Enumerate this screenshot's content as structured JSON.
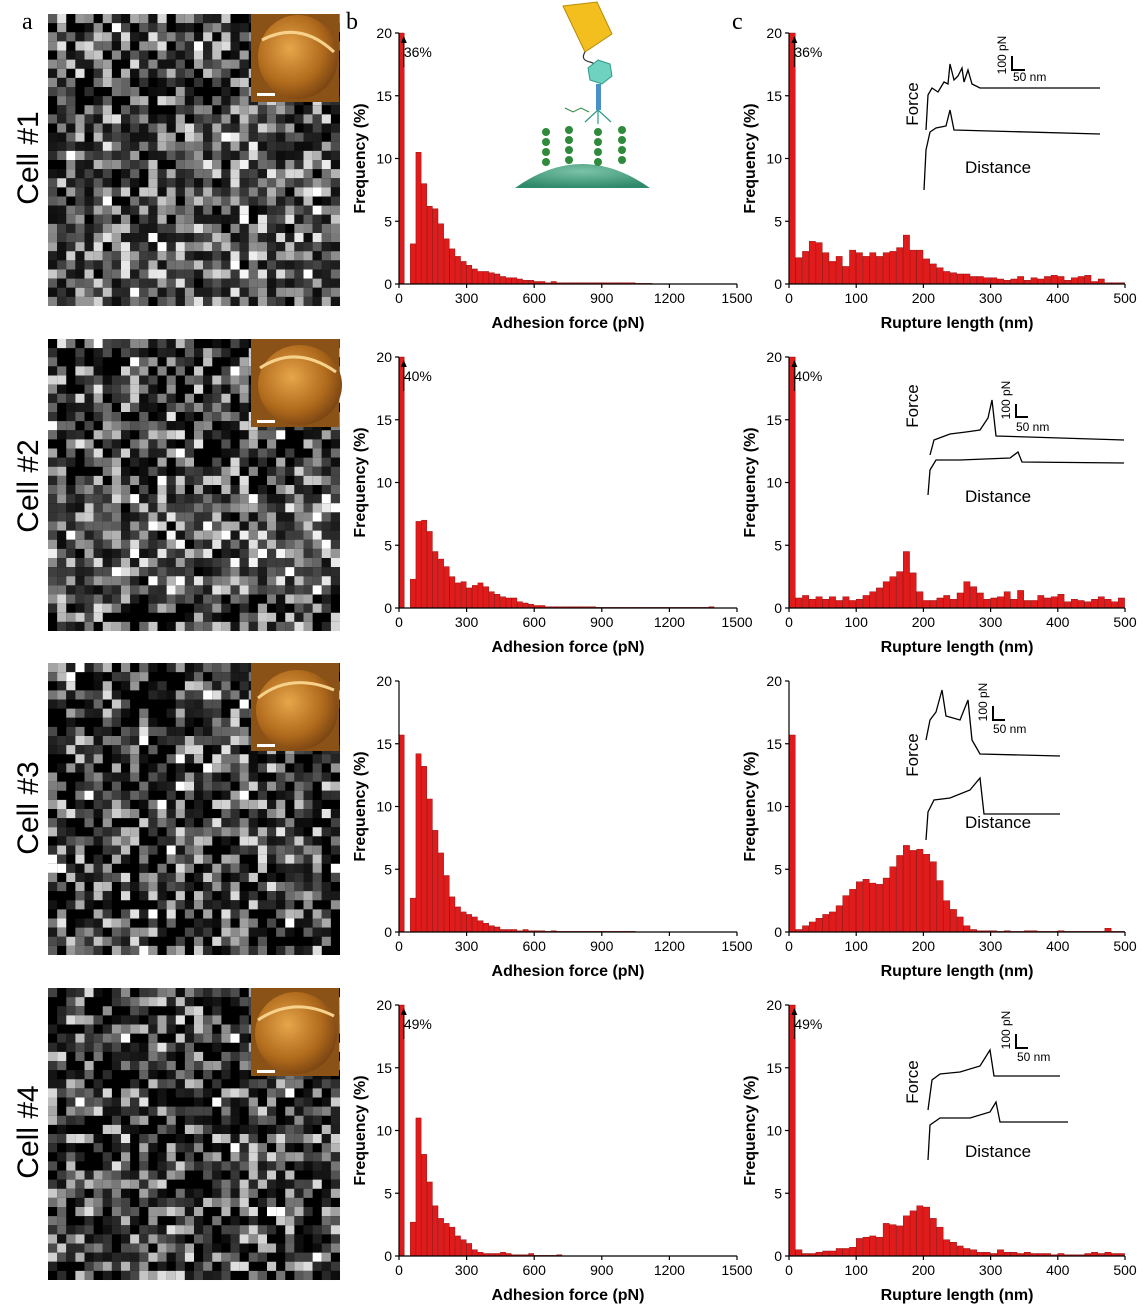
{
  "panel_letters": [
    "a",
    "b",
    "c"
  ],
  "cell_labels": [
    "Cell #1",
    "Cell #2",
    "Cell #3",
    "Cell #4"
  ],
  "inset_labels": {
    "force": "Force",
    "distance": "Distance",
    "force_scale": "100 pN",
    "distance_scale": "50 nm"
  },
  "colors": {
    "bar": "#e01b1b",
    "bar_stroke": "#8b0000",
    "axis": "#000000"
  },
  "chart_data": [
    {
      "type": "bar",
      "cell": "Cell #1",
      "panel": "b",
      "xlabel": "Adhesion force (pN)",
      "ylabel": "Frequency (%)",
      "xlim": [
        0,
        1500
      ],
      "ylim": [
        0,
        20
      ],
      "xticks": [
        "0",
        "300",
        "600",
        "900",
        "1200",
        "1500"
      ],
      "yticks": [
        "0",
        "5",
        "10",
        "15",
        "20"
      ],
      "bin_width": 25,
      "first_bin_label": "36%",
      "values": [
        36,
        0,
        3.2,
        10.5,
        8.0,
        6.2,
        6.0,
        4.8,
        3.6,
        2.8,
        2.2,
        1.8,
        1.5,
        1.2,
        1.0,
        1.0,
        0.9,
        0.8,
        0.6,
        0.5,
        0.5,
        0.4,
        0.3,
        0.3,
        0.2,
        0.2,
        0.1,
        0.2,
        0.1,
        0.1,
        0.1,
        0.1,
        0.1,
        0.1,
        0.1,
        0.1,
        0.1,
        0.1,
        0.1,
        0.1,
        0.1,
        0.1,
        0.05,
        0.05,
        0.05
      ]
    },
    {
      "type": "bar",
      "cell": "Cell #1",
      "panel": "c",
      "xlabel": "Rupture length (nm)",
      "ylabel": "Frequency (%)",
      "xlim": [
        0,
        500
      ],
      "ylim": [
        0,
        20
      ],
      "xticks": [
        "0",
        "100",
        "200",
        "300",
        "400",
        "500"
      ],
      "yticks": [
        "0",
        "5",
        "10",
        "15",
        "20"
      ],
      "bin_width": 10,
      "first_bin_label": "36%",
      "values": [
        36,
        2.1,
        2.6,
        3.4,
        3.3,
        2.5,
        1.8,
        2.2,
        1.4,
        2.7,
        2.5,
        2.2,
        2.5,
        2.2,
        2.5,
        2.6,
        2.9,
        3.9,
        2.7,
        2.7,
        2.0,
        1.6,
        1.3,
        1.0,
        0.9,
        0.8,
        0.8,
        0.6,
        0.6,
        0.5,
        0.5,
        0.4,
        0.3,
        0.4,
        0.6,
        0.3,
        0.5,
        0.4,
        0.6,
        0.7,
        0.6,
        0.3,
        0.5,
        0.6,
        0.7,
        0.2,
        0.4,
        0.1,
        0.1,
        0.1
      ]
    },
    {
      "type": "bar",
      "cell": "Cell #2",
      "panel": "b",
      "xlabel": "Adhesion force (pN)",
      "ylabel": "Frequency (%)",
      "xlim": [
        0,
        1500
      ],
      "ylim": [
        0,
        20
      ],
      "xticks": [
        "0",
        "300",
        "600",
        "900",
        "1200",
        "1500"
      ],
      "yticks": [
        "0",
        "5",
        "10",
        "15",
        "20"
      ],
      "bin_width": 25,
      "first_bin_label": "40%",
      "values": [
        40,
        0,
        2.3,
        6.9,
        7.0,
        6.1,
        4.5,
        3.9,
        3.3,
        2.5,
        2.0,
        2.1,
        1.6,
        1.8,
        2.0,
        1.7,
        1.3,
        1.1,
        0.9,
        0.8,
        0.8,
        0.5,
        0.4,
        0.3,
        0.2,
        0.2,
        0.1,
        0.1,
        0.1,
        0.1,
        0.1,
        0.1,
        0.1,
        0.1,
        0.1,
        0.05,
        0.05,
        0.05,
        0.05,
        0.05,
        0.05,
        0.05,
        0.05,
        0.05,
        0.05,
        0.05,
        0.05,
        0.05,
        0.05,
        0.05,
        0.05,
        0.05,
        0.05,
        0.05,
        0.05,
        0.1
      ]
    },
    {
      "type": "bar",
      "cell": "Cell #2",
      "panel": "c",
      "xlabel": "Rupture length (nm)",
      "ylabel": "Frequency (%)",
      "xlim": [
        0,
        500
      ],
      "ylim": [
        0,
        20
      ],
      "xticks": [
        "0",
        "100",
        "200",
        "300",
        "400",
        "500"
      ],
      "yticks": [
        "0",
        "5",
        "10",
        "15",
        "20"
      ],
      "bin_width": 10,
      "first_bin_label": "40%",
      "values": [
        40,
        0.8,
        1.0,
        0.7,
        0.9,
        0.7,
        0.9,
        0.6,
        0.9,
        0.6,
        0.7,
        1.0,
        1.3,
        1.6,
        2.1,
        2.5,
        2.9,
        4.5,
        2.8,
        1.3,
        0.6,
        0.6,
        0.8,
        1.0,
        0.7,
        1.2,
        2.1,
        1.7,
        1.2,
        0.7,
        0.8,
        0.9,
        1.3,
        0.7,
        1.4,
        0.6,
        0.6,
        1.0,
        0.8,
        0.9,
        1.1,
        0.5,
        0.7,
        0.6,
        0.5,
        0.7,
        0.9,
        0.7,
        0.5,
        0.8
      ]
    },
    {
      "type": "bar",
      "cell": "Cell #3",
      "panel": "b",
      "xlabel": "Adhesion force (pN)",
      "ylabel": "Frequency (%)",
      "xlim": [
        0,
        1500
      ],
      "ylim": [
        0,
        20
      ],
      "xticks": [
        "0",
        "300",
        "600",
        "900",
        "1200",
        "1500"
      ],
      "yticks": [
        "0",
        "5",
        "10",
        "15",
        "20"
      ],
      "bin_width": 25,
      "values": [
        15.7,
        0,
        2.7,
        14.2,
        13.2,
        10.6,
        8.1,
        6.3,
        4.5,
        2.8,
        2.0,
        1.6,
        1.4,
        1.2,
        0.9,
        0.7,
        0.5,
        0.4,
        0.2,
        0.2,
        0.2,
        0.1,
        0.2,
        0.1,
        0.1,
        0.1,
        0.05,
        0.1,
        0.05,
        0.05,
        0.05,
        0.05,
        0.05,
        0.05,
        0.05,
        0.05,
        0.05,
        0.05,
        0.05,
        0.05,
        0.05,
        0.05
      ]
    },
    {
      "type": "bar",
      "cell": "Cell #3",
      "panel": "c",
      "xlabel": "Rupture length (nm)",
      "ylabel": "Frequency (%)",
      "xlim": [
        0,
        500
      ],
      "ylim": [
        0,
        20
      ],
      "xticks": [
        "0",
        "100",
        "200",
        "300",
        "400",
        "500"
      ],
      "yticks": [
        "0",
        "5",
        "10",
        "15",
        "20"
      ],
      "bin_width": 10,
      "values": [
        15.7,
        0.2,
        0.5,
        0.8,
        1.1,
        1.4,
        1.6,
        2.1,
        2.9,
        3.4,
        4.0,
        4.2,
        3.9,
        3.8,
        4.3,
        5.2,
        6.1,
        6.9,
        6.5,
        6.6,
        6.2,
        5.6,
        4.1,
        2.5,
        1.8,
        1.2,
        0.5,
        0.2,
        0.1,
        0.1,
        0.1,
        0.05,
        0.1,
        0.05,
        0.05,
        0.1,
        0.1,
        0.05,
        0.05,
        0.05,
        0.1,
        0.05,
        0.05,
        0.05,
        0.05,
        0.05,
        0.05,
        0.3,
        0.05,
        0.05
      ]
    },
    {
      "type": "bar",
      "cell": "Cell #4",
      "panel": "b",
      "xlabel": "Adhesion force (pN)",
      "ylabel": "Frequency (%)",
      "xlim": [
        0,
        1500
      ],
      "ylim": [
        0,
        20
      ],
      "xticks": [
        "0",
        "300",
        "600",
        "900",
        "1200",
        "1500"
      ],
      "yticks": [
        "0",
        "5",
        "10",
        "15",
        "20"
      ],
      "bin_width": 25,
      "first_bin_label": "49%",
      "values": [
        49,
        0,
        2.7,
        11.0,
        8.1,
        5.9,
        4.0,
        3.0,
        2.6,
        2.3,
        1.6,
        1.3,
        1.0,
        0.5,
        0.3,
        0.2,
        0.2,
        0.2,
        0.3,
        0.2,
        0.1,
        0.1,
        0.1,
        0.2,
        0.05,
        0.05,
        0.05,
        0.05,
        0.1
      ]
    },
    {
      "type": "bar",
      "cell": "Cell #4",
      "panel": "c",
      "xlabel": "Rupture length (nm)",
      "ylabel": "Frequency (%)",
      "xlim": [
        0,
        500
      ],
      "ylim": [
        0,
        20
      ],
      "xticks": [
        "0",
        "100",
        "200",
        "300",
        "400",
        "500"
      ],
      "yticks": [
        "0",
        "5",
        "10",
        "15",
        "20"
      ],
      "bin_width": 10,
      "first_bin_label": "49%",
      "values": [
        49,
        0.5,
        0.2,
        0.2,
        0.3,
        0.4,
        0.4,
        0.6,
        0.6,
        0.7,
        1.4,
        1.5,
        1.6,
        1.5,
        2.6,
        2.5,
        2.4,
        3.2,
        3.6,
        4.0,
        3.9,
        3.0,
        2.3,
        1.3,
        1.1,
        0.8,
        0.6,
        0.5,
        0.3,
        0.3,
        0.2,
        0.5,
        0.3,
        0.3,
        0.2,
        0.3,
        0.2,
        0.2,
        0.2,
        0.1,
        0.2,
        0.1,
        0.1,
        0.1,
        0.2,
        0.3,
        0.2,
        0.3,
        0.2,
        0.2
      ]
    }
  ]
}
